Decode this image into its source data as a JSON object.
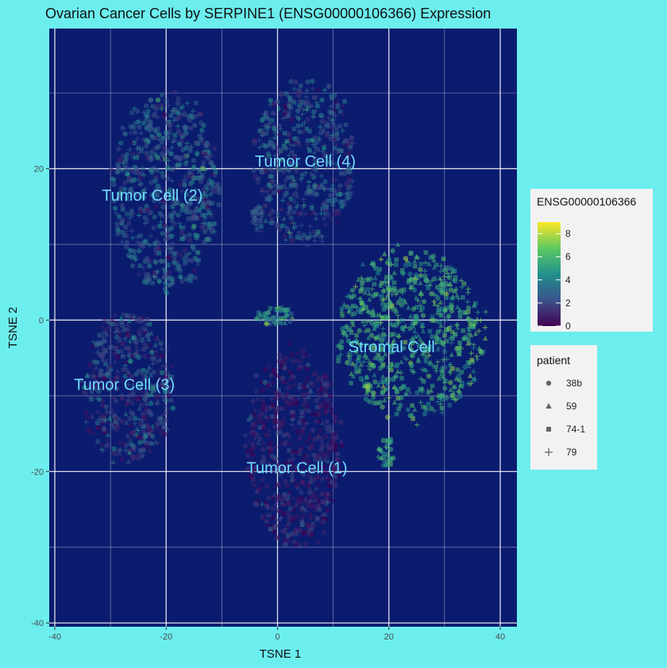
{
  "chart_data": {
    "type": "scatter",
    "title": "Ovarian Cancer Cells by SERPINE1 (ENSG00000106366) Expression",
    "xlabel": "TSNE 1",
    "ylabel": "TSNE 2",
    "xlim": [
      -41,
      43
    ],
    "ylim": [
      -40.5,
      38.5
    ],
    "x_ticks": [
      -40,
      -20,
      0,
      20,
      40
    ],
    "y_ticks": [
      -40,
      -20,
      0,
      20
    ],
    "grid": true,
    "panel_background": "#0b1c6f",
    "clusters": [
      {
        "label": "Tumor Cell (1)",
        "label_pos": [
          3.5,
          -19.5
        ],
        "center": [
          3,
          -17
        ],
        "spread": [
          8.5,
          13
        ],
        "n": 650,
        "expr_mean": 0.9,
        "expr_sd": 0.9,
        "patients": [
          "74-1",
          "38b",
          "59",
          "79"
        ]
      },
      {
        "label": "Tumor Cell (2)",
        "label_pos": [
          -22.5,
          16.5
        ],
        "center": [
          -20,
          17
        ],
        "spread": [
          9.5,
          13
        ],
        "n": 650,
        "expr_mean": 2.8,
        "expr_sd": 1.2,
        "patients": [
          "38b",
          "38b",
          "74-1",
          "79"
        ]
      },
      {
        "label": "Tumor Cell (3)",
        "label_pos": [
          -27.5,
          -8.5
        ],
        "center": [
          -27,
          -9
        ],
        "spread": [
          8,
          10
        ],
        "n": 480,
        "expr_mean": 2.0,
        "expr_sd": 1.3,
        "patients": [
          "59",
          "38b",
          "74-1",
          "79"
        ]
      },
      {
        "label": "Tumor Cell (4)",
        "label_pos": [
          5,
          21
        ],
        "center": [
          5,
          21
        ],
        "spread": [
          9,
          11
        ],
        "n": 520,
        "expr_mean": 2.5,
        "expr_sd": 1.2,
        "patients": [
          "79",
          "79",
          "74-1",
          "38b"
        ]
      },
      {
        "label": "Stromal Cell",
        "label_pos": [
          20.5,
          -3.5
        ],
        "center": [
          24,
          -2
        ],
        "spread": [
          13,
          11
        ],
        "n": 750,
        "expr_mean": 5.6,
        "expr_sd": 0.9,
        "patients": [
          "74-1",
          "59",
          "79",
          "38b"
        ]
      }
    ],
    "small_clusters": [
      {
        "center": [
          -0.5,
          0.5
        ],
        "spread": [
          3.5,
          1.2
        ],
        "n": 60,
        "expr_mean": 4.5,
        "expr_sd": 1.5
      },
      {
        "center": [
          -3.5,
          13
        ],
        "spread": [
          1.5,
          2
        ],
        "n": 35,
        "expr_mean": 3.0,
        "expr_sd": 1.0
      },
      {
        "center": [
          19.5,
          -17.5
        ],
        "spread": [
          1.5,
          2
        ],
        "n": 35,
        "expr_mean": 5.0,
        "expr_sd": 1.0
      }
    ],
    "legend_color": {
      "title": "ENSG00000106366",
      "ticks": [
        "8",
        "6",
        "4",
        "2",
        "0"
      ],
      "range": [
        0,
        9
      ],
      "palette": [
        "#440154",
        "#3b528b",
        "#21918c",
        "#5ec962",
        "#fde725"
      ]
    },
    "legend_shape": {
      "title": "patient",
      "entries": [
        {
          "label": "38b",
          "shape": "circle"
        },
        {
          "label": "59",
          "shape": "triangle"
        },
        {
          "label": "74-1",
          "shape": "square"
        },
        {
          "label": "79",
          "shape": "plus"
        }
      ]
    }
  }
}
